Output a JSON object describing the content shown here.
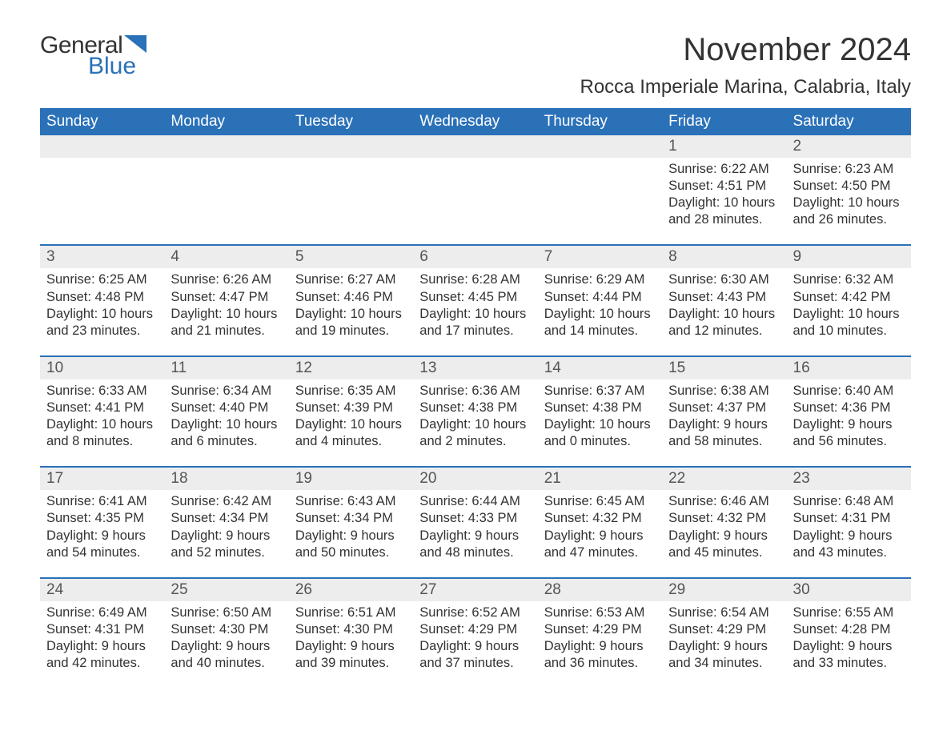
{
  "logo": {
    "text1": "General",
    "text2": "Blue",
    "tri_color": "#2a71b8"
  },
  "title": "November 2024",
  "location": "Rocca Imperiale Marina, Calabria, Italy",
  "colors": {
    "header_bg": "#2a71b8",
    "header_text": "#ffffff",
    "daynum_bg": "#ededed",
    "body_text": "#333333",
    "week_border": "#2a71b8"
  },
  "typography": {
    "title_fontsize": 40,
    "location_fontsize": 24,
    "weekday_fontsize": 19,
    "daynum_fontsize": 19,
    "data_fontsize": 16.5
  },
  "weekdays": [
    "Sunday",
    "Monday",
    "Tuesday",
    "Wednesday",
    "Thursday",
    "Friday",
    "Saturday"
  ],
  "weeks": [
    [
      {
        "n": "",
        "sunrise": "",
        "sunset": "",
        "day1": "",
        "day2": ""
      },
      {
        "n": "",
        "sunrise": "",
        "sunset": "",
        "day1": "",
        "day2": ""
      },
      {
        "n": "",
        "sunrise": "",
        "sunset": "",
        "day1": "",
        "day2": ""
      },
      {
        "n": "",
        "sunrise": "",
        "sunset": "",
        "day1": "",
        "day2": ""
      },
      {
        "n": "",
        "sunrise": "",
        "sunset": "",
        "day1": "",
        "day2": ""
      },
      {
        "n": "1",
        "sunrise": "Sunrise: 6:22 AM",
        "sunset": "Sunset: 4:51 PM",
        "day1": "Daylight: 10 hours",
        "day2": "and 28 minutes."
      },
      {
        "n": "2",
        "sunrise": "Sunrise: 6:23 AM",
        "sunset": "Sunset: 4:50 PM",
        "day1": "Daylight: 10 hours",
        "day2": "and 26 minutes."
      }
    ],
    [
      {
        "n": "3",
        "sunrise": "Sunrise: 6:25 AM",
        "sunset": "Sunset: 4:48 PM",
        "day1": "Daylight: 10 hours",
        "day2": "and 23 minutes."
      },
      {
        "n": "4",
        "sunrise": "Sunrise: 6:26 AM",
        "sunset": "Sunset: 4:47 PM",
        "day1": "Daylight: 10 hours",
        "day2": "and 21 minutes."
      },
      {
        "n": "5",
        "sunrise": "Sunrise: 6:27 AM",
        "sunset": "Sunset: 4:46 PM",
        "day1": "Daylight: 10 hours",
        "day2": "and 19 minutes."
      },
      {
        "n": "6",
        "sunrise": "Sunrise: 6:28 AM",
        "sunset": "Sunset: 4:45 PM",
        "day1": "Daylight: 10 hours",
        "day2": "and 17 minutes."
      },
      {
        "n": "7",
        "sunrise": "Sunrise: 6:29 AM",
        "sunset": "Sunset: 4:44 PM",
        "day1": "Daylight: 10 hours",
        "day2": "and 14 minutes."
      },
      {
        "n": "8",
        "sunrise": "Sunrise: 6:30 AM",
        "sunset": "Sunset: 4:43 PM",
        "day1": "Daylight: 10 hours",
        "day2": "and 12 minutes."
      },
      {
        "n": "9",
        "sunrise": "Sunrise: 6:32 AM",
        "sunset": "Sunset: 4:42 PM",
        "day1": "Daylight: 10 hours",
        "day2": "and 10 minutes."
      }
    ],
    [
      {
        "n": "10",
        "sunrise": "Sunrise: 6:33 AM",
        "sunset": "Sunset: 4:41 PM",
        "day1": "Daylight: 10 hours",
        "day2": "and 8 minutes."
      },
      {
        "n": "11",
        "sunrise": "Sunrise: 6:34 AM",
        "sunset": "Sunset: 4:40 PM",
        "day1": "Daylight: 10 hours",
        "day2": "and 6 minutes."
      },
      {
        "n": "12",
        "sunrise": "Sunrise: 6:35 AM",
        "sunset": "Sunset: 4:39 PM",
        "day1": "Daylight: 10 hours",
        "day2": "and 4 minutes."
      },
      {
        "n": "13",
        "sunrise": "Sunrise: 6:36 AM",
        "sunset": "Sunset: 4:38 PM",
        "day1": "Daylight: 10 hours",
        "day2": "and 2 minutes."
      },
      {
        "n": "14",
        "sunrise": "Sunrise: 6:37 AM",
        "sunset": "Sunset: 4:38 PM",
        "day1": "Daylight: 10 hours",
        "day2": "and 0 minutes."
      },
      {
        "n": "15",
        "sunrise": "Sunrise: 6:38 AM",
        "sunset": "Sunset: 4:37 PM",
        "day1": "Daylight: 9 hours",
        "day2": "and 58 minutes."
      },
      {
        "n": "16",
        "sunrise": "Sunrise: 6:40 AM",
        "sunset": "Sunset: 4:36 PM",
        "day1": "Daylight: 9 hours",
        "day2": "and 56 minutes."
      }
    ],
    [
      {
        "n": "17",
        "sunrise": "Sunrise: 6:41 AM",
        "sunset": "Sunset: 4:35 PM",
        "day1": "Daylight: 9 hours",
        "day2": "and 54 minutes."
      },
      {
        "n": "18",
        "sunrise": "Sunrise: 6:42 AM",
        "sunset": "Sunset: 4:34 PM",
        "day1": "Daylight: 9 hours",
        "day2": "and 52 minutes."
      },
      {
        "n": "19",
        "sunrise": "Sunrise: 6:43 AM",
        "sunset": "Sunset: 4:34 PM",
        "day1": "Daylight: 9 hours",
        "day2": "and 50 minutes."
      },
      {
        "n": "20",
        "sunrise": "Sunrise: 6:44 AM",
        "sunset": "Sunset: 4:33 PM",
        "day1": "Daylight: 9 hours",
        "day2": "and 48 minutes."
      },
      {
        "n": "21",
        "sunrise": "Sunrise: 6:45 AM",
        "sunset": "Sunset: 4:32 PM",
        "day1": "Daylight: 9 hours",
        "day2": "and 47 minutes."
      },
      {
        "n": "22",
        "sunrise": "Sunrise: 6:46 AM",
        "sunset": "Sunset: 4:32 PM",
        "day1": "Daylight: 9 hours",
        "day2": "and 45 minutes."
      },
      {
        "n": "23",
        "sunrise": "Sunrise: 6:48 AM",
        "sunset": "Sunset: 4:31 PM",
        "day1": "Daylight: 9 hours",
        "day2": "and 43 minutes."
      }
    ],
    [
      {
        "n": "24",
        "sunrise": "Sunrise: 6:49 AM",
        "sunset": "Sunset: 4:31 PM",
        "day1": "Daylight: 9 hours",
        "day2": "and 42 minutes."
      },
      {
        "n": "25",
        "sunrise": "Sunrise: 6:50 AM",
        "sunset": "Sunset: 4:30 PM",
        "day1": "Daylight: 9 hours",
        "day2": "and 40 minutes."
      },
      {
        "n": "26",
        "sunrise": "Sunrise: 6:51 AM",
        "sunset": "Sunset: 4:30 PM",
        "day1": "Daylight: 9 hours",
        "day2": "and 39 minutes."
      },
      {
        "n": "27",
        "sunrise": "Sunrise: 6:52 AM",
        "sunset": "Sunset: 4:29 PM",
        "day1": "Daylight: 9 hours",
        "day2": "and 37 minutes."
      },
      {
        "n": "28",
        "sunrise": "Sunrise: 6:53 AM",
        "sunset": "Sunset: 4:29 PM",
        "day1": "Daylight: 9 hours",
        "day2": "and 36 minutes."
      },
      {
        "n": "29",
        "sunrise": "Sunrise: 6:54 AM",
        "sunset": "Sunset: 4:29 PM",
        "day1": "Daylight: 9 hours",
        "day2": "and 34 minutes."
      },
      {
        "n": "30",
        "sunrise": "Sunrise: 6:55 AM",
        "sunset": "Sunset: 4:28 PM",
        "day1": "Daylight: 9 hours",
        "day2": "and 33 minutes."
      }
    ]
  ]
}
